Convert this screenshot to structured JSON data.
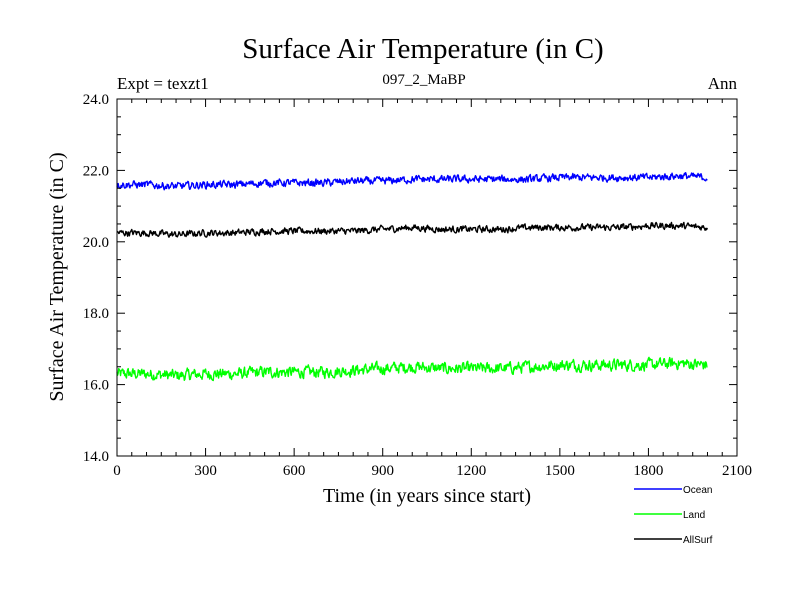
{
  "chart_data": {
    "type": "line",
    "title": "Surface Air Temperature (in C)",
    "subtitle": "097_2_MaBP",
    "left_label": "Expt = texzt1",
    "right_label": "Ann",
    "xlabel": "Time (in years since start)",
    "ylabel": "Surface Air Temperature (in C)",
    "xlim": [
      0,
      2100
    ],
    "ylim": [
      14.0,
      24.0
    ],
    "x_ticks": [
      0,
      300,
      600,
      900,
      1200,
      1500,
      1800,
      2100
    ],
    "x_tick_labels": [
      "0",
      "300",
      "600",
      "900",
      "1200",
      "1500",
      "1800",
      "2100"
    ],
    "y_ticks": [
      14,
      16,
      18,
      20,
      22,
      24
    ],
    "y_tick_labels": [
      "14.0",
      "16.0",
      "18.0",
      "20.0",
      "22.0",
      "24.0"
    ],
    "x": [
      0,
      100,
      200,
      300,
      400,
      500,
      600,
      700,
      800,
      900,
      1000,
      1100,
      1200,
      1300,
      1400,
      1500,
      1600,
      1700,
      1800,
      1900,
      2000
    ],
    "series": [
      {
        "name": "Ocean",
        "color": "#0000ff",
        "values": [
          21.6,
          21.6,
          21.55,
          21.6,
          21.6,
          21.65,
          21.65,
          21.65,
          21.7,
          21.7,
          21.75,
          21.75,
          21.75,
          21.75,
          21.75,
          21.8,
          21.8,
          21.8,
          21.8,
          21.85,
          21.8
        ]
      },
      {
        "name": "Land",
        "color": "#00ff00",
        "values": [
          16.3,
          16.3,
          16.25,
          16.3,
          16.3,
          16.35,
          16.35,
          16.35,
          16.4,
          16.45,
          16.5,
          16.45,
          16.45,
          16.45,
          16.5,
          16.55,
          16.55,
          16.55,
          16.55,
          16.6,
          16.55
        ]
      },
      {
        "name": "AllSurf",
        "color": "#000000",
        "values": [
          20.25,
          20.25,
          20.2,
          20.25,
          20.25,
          20.3,
          20.3,
          20.3,
          20.3,
          20.35,
          20.4,
          20.35,
          20.35,
          20.35,
          20.4,
          20.4,
          20.4,
          20.4,
          20.45,
          20.45,
          20.4
        ]
      }
    ],
    "legend": {
      "placement": "bottom-right"
    }
  }
}
